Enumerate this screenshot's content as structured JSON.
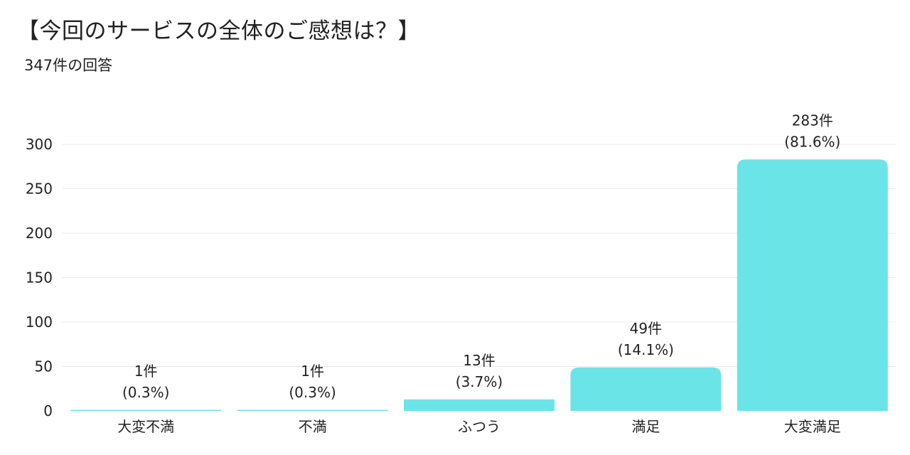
{
  "title": "【今回のサービスの全体のご感想は？】",
  "subtitle": "347件の回答",
  "colors": {
    "bar": "#6be4e8",
    "grid": "#e8e8e8",
    "text": "#222222"
  },
  "chart_data": {
    "type": "bar",
    "categories": [
      "大変不満",
      "不満",
      "ふつう",
      "満足",
      "大変満足"
    ],
    "values": [
      1,
      1,
      13,
      49,
      283
    ],
    "data_labels": [
      [
        "1件",
        "(0.3%)"
      ],
      [
        "1件",
        "(0.3%)"
      ],
      [
        "13件",
        "(3.7%)"
      ],
      [
        "49件",
        "(14.1%)"
      ],
      [
        "283件",
        "(81.6%)"
      ]
    ],
    "yticks": [
      0,
      50,
      100,
      150,
      200,
      250,
      300
    ],
    "ylim": [
      0,
      300
    ],
    "grid": true
  }
}
